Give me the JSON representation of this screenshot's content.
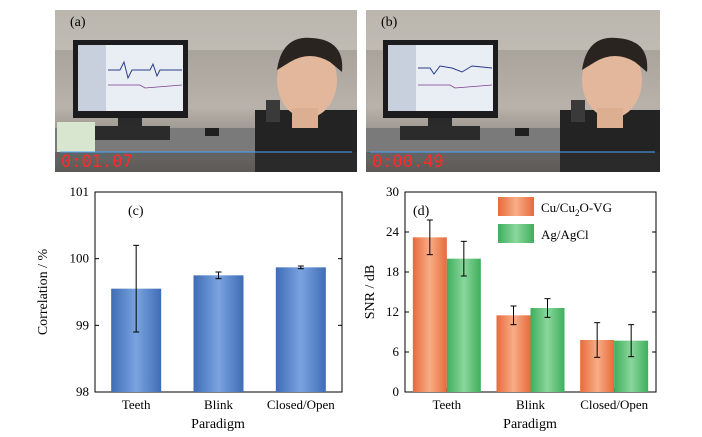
{
  "photos": [
    {
      "panel_label": "(a)",
      "timestamp": "0:01.07"
    },
    {
      "panel_label": "(b)",
      "timestamp": "0:00.49"
    }
  ],
  "colors": {
    "blue_bar": "#5b86c9",
    "orange_bar": "#f08a5d",
    "green_bar": "#63c07a",
    "timestamp": "#ff2a2a"
  },
  "chart_data": [
    {
      "type": "bar",
      "panel_label": "(c)",
      "xlabel": "Paradigm",
      "ylabel": "Correlation / %",
      "categories": [
        "Teeth",
        "Blink",
        "Closed/Open"
      ],
      "ylim": [
        98,
        101
      ],
      "yticks": [
        98,
        99,
        100,
        101
      ],
      "series": [
        {
          "values": [
            99.55,
            99.75,
            99.87
          ],
          "errors": [
            0.65,
            0.05,
            0.02
          ]
        }
      ]
    },
    {
      "type": "bar",
      "panel_label": "(d)",
      "xlabel": "Paradigm",
      "ylabel": "SNR / dB",
      "categories": [
        "Teeth",
        "Blink",
        "Closed/Open"
      ],
      "ylim": [
        0,
        30
      ],
      "yticks": [
        0,
        6,
        12,
        18,
        24,
        30
      ],
      "legend_position": "top-right",
      "series": [
        {
          "name": "Cu/Cu2O-VG",
          "legend_main": "Cu/Cu",
          "legend_sub": "2",
          "legend_tail": "O-VG",
          "values": [
            23.2,
            11.5,
            7.8
          ],
          "errors": [
            2.6,
            1.4,
            2.6
          ]
        },
        {
          "name": "Ag/AgCl",
          "values": [
            20.0,
            12.6,
            7.7
          ],
          "errors": [
            2.6,
            1.4,
            2.4
          ]
        }
      ]
    }
  ]
}
